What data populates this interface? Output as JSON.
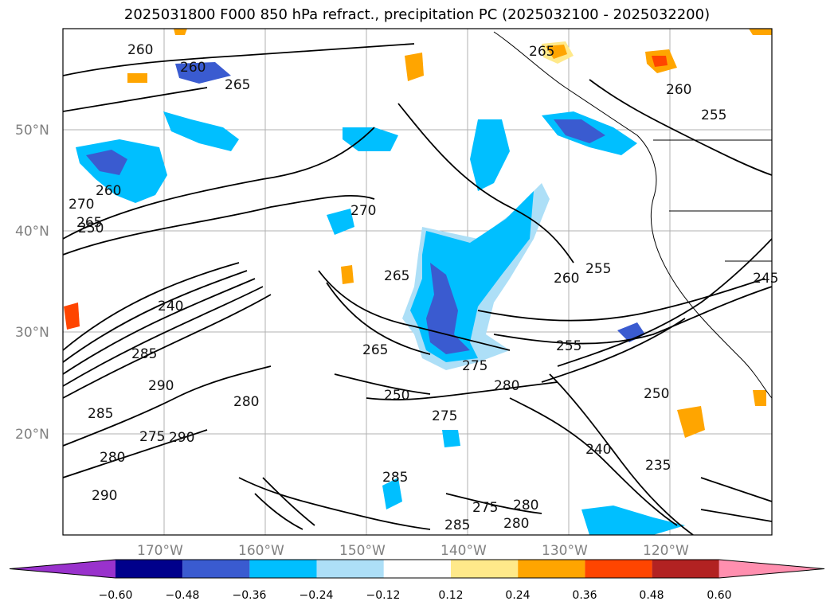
{
  "title": "2025031800 F000 850 hPa refract., precipitation PC (2025032100 - 2025032200)",
  "map": {
    "lat_labels": [
      "50°N",
      "40°N",
      "30°N",
      "20°N"
    ],
    "lon_labels": [
      "170°W",
      "160°W",
      "150°W",
      "140°W",
      "130°W",
      "120°W"
    ],
    "contour_labels": [
      "260",
      "260",
      "265",
      "270",
      "265",
      "260",
      "250",
      "270",
      "265",
      "255",
      "260",
      "240",
      "285",
      "290",
      "285",
      "275",
      "290",
      "280",
      "265",
      "250",
      "280",
      "275",
      "275",
      "255",
      "250",
      "260",
      "240",
      "235",
      "290",
      "280",
      "285",
      "275",
      "280",
      "285",
      "280",
      "255",
      "265",
      "245"
    ]
  },
  "colorbar": {
    "ticks": [
      "−0.60",
      "−0.48",
      "−0.36",
      "−0.24",
      "−0.12",
      "0.12",
      "0.24",
      "0.36",
      "0.48",
      "0.60"
    ],
    "colors": [
      "#9932CC",
      "#00008B",
      "#3A5BD0",
      "#00BFFF",
      "#ADDFF7",
      "#FFFFFF",
      "#FFE98A",
      "#FFA500",
      "#FF4500",
      "#B22222",
      "#FF8FAF"
    ]
  }
}
